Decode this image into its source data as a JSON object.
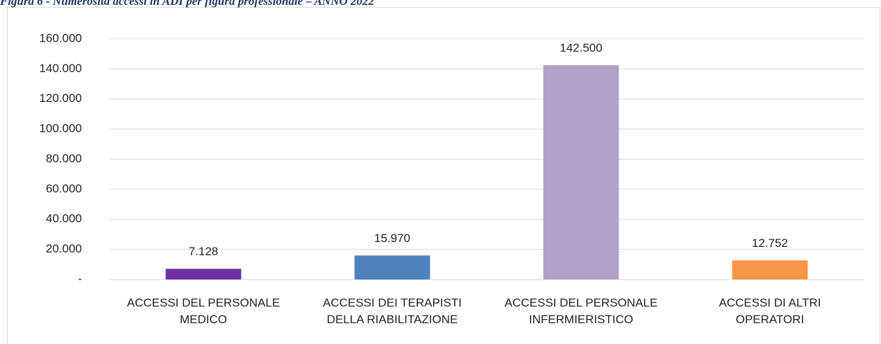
{
  "chart_data": {
    "type": "bar",
    "title": "Figura 6 - Numerosità accessi in ADI per figura professionale – ANNO 2022",
    "categories": [
      "ACCESSI DEL PERSONALE MEDICO",
      "ACCESSI DEI TERAPISTI DELLA RIABILITAZIONE",
      "ACCESSI DEL PERSONALE INFERMIERISTICO",
      "ACCESSI DI ALTRI OPERATORI"
    ],
    "values": [
      7128,
      15970,
      142500,
      12752
    ],
    "value_labels": [
      "7.128",
      "15.970",
      "142.500",
      "12.752"
    ],
    "colors": [
      "#7030a0",
      "#4f81bd",
      "#b1a0c7",
      "#f79646"
    ],
    "ylim": [
      0,
      160000
    ],
    "yticks": [
      {
        "value": 0,
        "label": "-"
      },
      {
        "value": 20000,
        "label": "20.000"
      },
      {
        "value": 40000,
        "label": "40.000"
      },
      {
        "value": 60000,
        "label": "60.000"
      },
      {
        "value": 80000,
        "label": "80.000"
      },
      {
        "value": 100000,
        "label": "100.000"
      },
      {
        "value": 120000,
        "label": "120.000"
      },
      {
        "value": 140000,
        "label": "140.000"
      },
      {
        "value": 160000,
        "label": "160.000"
      }
    ],
    "grid": true
  }
}
